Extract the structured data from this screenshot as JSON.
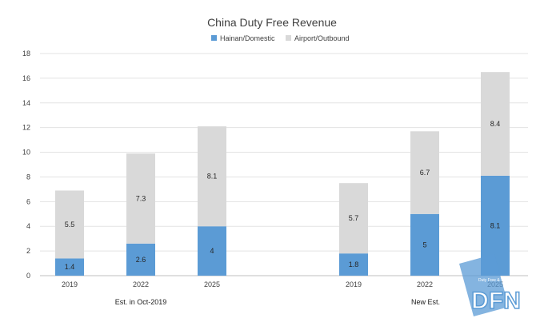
{
  "chart_data": {
    "type": "bar",
    "stacked": true,
    "title": "China Duty Free Revenue",
    "xlabel": "",
    "ylabel": "",
    "ylim": [
      0,
      18
    ],
    "yticks": [
      0,
      2,
      4,
      6,
      8,
      10,
      12,
      14,
      16,
      18
    ],
    "grid": true,
    "legend_position": "top",
    "groups": [
      {
        "label": "Est. in Oct-2019",
        "categories": [
          "2019",
          "2022",
          "2025"
        ]
      },
      {
        "label": "New Est.",
        "categories": [
          "2019",
          "2022",
          "2025"
        ]
      }
    ],
    "series": [
      {
        "name": "Hainan/Domestic",
        "color": "#5b9bd5",
        "values": [
          1.4,
          2.6,
          4,
          1.8,
          5,
          8.1
        ]
      },
      {
        "name": "Airport/Outbound",
        "color": "#d9d9d9",
        "values": [
          5.5,
          7.3,
          8.1,
          5.7,
          6.7,
          8.4
        ]
      }
    ],
    "data_labels": {
      "Hainan/Domestic": [
        "1.4",
        "2.6",
        "4",
        "1.8",
        "5",
        "8.1"
      ],
      "Airport/Outbound": [
        "5.5",
        "7.3",
        "8.1",
        "5.7",
        "6.7",
        "8.4"
      ]
    }
  },
  "watermark": {
    "text": "DFN",
    "small_text": "Duty Free & Travel Retail News",
    "color": "#5b9bd5"
  }
}
